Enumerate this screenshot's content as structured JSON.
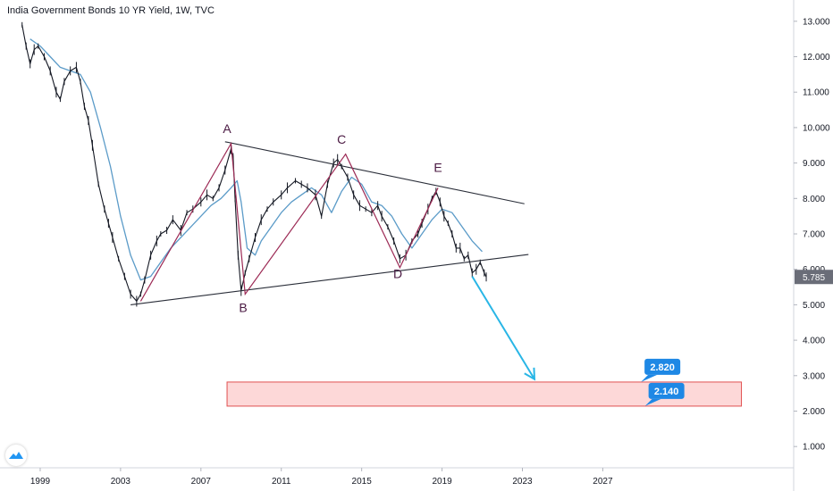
{
  "title": "India Government Bonds 10 YR Yield, 1W, TVC",
  "colors": {
    "price": "#131722",
    "ma": "#5b9bc8",
    "trendline": "#2a2e39",
    "wave": "#9c2a55",
    "arrow": "#29b6e6",
    "zone_fill": "#fdd8d8",
    "zone_border": "#e05050",
    "callout": "#1e88e5",
    "last_price_bg": "#6a6d78"
  },
  "chart_data": {
    "type": "line",
    "xlim": [
      1997.0,
      2036.5
    ],
    "ylim": [
      0.4,
      13.6
    ],
    "x_ticks": [
      "1999",
      "2003",
      "2007",
      "2011",
      "2015",
      "2019",
      "2023",
      "2027"
    ],
    "y_ticks": [
      "1.000",
      "2.000",
      "3.000",
      "4.000",
      "5.000",
      "6.000",
      "7.000",
      "8.000",
      "9.000",
      "10.000",
      "11.000",
      "12.000",
      "13.000"
    ],
    "last_value": "5.785",
    "series": [
      {
        "role": "price",
        "x": [
          1998.1,
          1998.3,
          1998.5,
          1998.7,
          1998.9,
          1999.2,
          1999.5,
          1999.8,
          2000.0,
          2000.2,
          2000.5,
          2000.8,
          2001.0,
          2001.2,
          2001.4,
          2001.6,
          2001.9,
          2002.2,
          2002.4,
          2002.6,
          2002.9,
          2003.2,
          2003.5,
          2003.8,
          2004.0,
          2004.2,
          2004.5,
          2004.8,
          2005.0,
          2005.3,
          2005.6,
          2006.0,
          2006.3,
          2006.6,
          2007.0,
          2007.3,
          2007.6,
          2007.9,
          2008.2,
          2008.5,
          2008.6,
          2008.7,
          2008.85,
          2009.0,
          2009.2,
          2009.4,
          2009.7,
          2010.0,
          2010.3,
          2010.6,
          2011.0,
          2011.3,
          2011.7,
          2012.0,
          2012.3,
          2012.7,
          2013.0,
          2013.3,
          2013.6,
          2013.8,
          2014.0,
          2014.3,
          2014.6,
          2014.9,
          2015.2,
          2015.5,
          2015.8,
          2016.0,
          2016.3,
          2016.6,
          2016.9,
          2017.2,
          2017.5,
          2017.8,
          2018.0,
          2018.3,
          2018.5,
          2018.7,
          2018.9,
          2019.1,
          2019.3,
          2019.5,
          2019.7,
          2019.9,
          2020.1,
          2020.3,
          2020.5,
          2020.7,
          2020.9,
          2021.1,
          2021.2
        ],
        "y": [
          12.9,
          12.3,
          11.8,
          12.2,
          12.3,
          12.0,
          11.6,
          11.0,
          10.8,
          11.3,
          11.6,
          11.7,
          11.3,
          10.6,
          10.2,
          9.5,
          8.4,
          7.7,
          7.3,
          6.9,
          6.3,
          5.8,
          5.3,
          5.1,
          5.3,
          5.7,
          6.4,
          6.8,
          7.0,
          7.1,
          7.4,
          7.1,
          7.6,
          7.7,
          7.9,
          8.1,
          8.0,
          8.3,
          8.8,
          9.4,
          9.2,
          8.0,
          6.4,
          5.4,
          5.9,
          6.3,
          6.9,
          7.4,
          7.7,
          7.9,
          8.1,
          8.3,
          8.5,
          8.4,
          8.3,
          8.1,
          7.5,
          8.4,
          9.0,
          9.1,
          8.9,
          8.6,
          8.1,
          7.8,
          7.7,
          7.6,
          7.8,
          7.5,
          7.2,
          6.8,
          6.3,
          6.4,
          6.8,
          7.0,
          7.3,
          7.7,
          8.0,
          8.2,
          7.9,
          7.5,
          7.3,
          7.0,
          6.6,
          6.6,
          6.3,
          6.4,
          5.9,
          6.0,
          6.2,
          5.9,
          5.785
        ]
      },
      {
        "role": "moving-average",
        "x": [
          1998.5,
          1999.0,
          1999.5,
          2000.0,
          2000.5,
          2001.0,
          2001.5,
          2002.0,
          2002.5,
          2003.0,
          2003.5,
          2004.0,
          2004.5,
          2005.0,
          2005.5,
          2006.0,
          2006.5,
          2007.0,
          2007.5,
          2008.0,
          2008.5,
          2008.8,
          2009.0,
          2009.3,
          2009.7,
          2010.0,
          2010.5,
          2011.0,
          2011.5,
          2012.0,
          2012.5,
          2013.0,
          2013.5,
          2014.0,
          2014.5,
          2015.0,
          2015.5,
          2016.0,
          2016.5,
          2017.0,
          2017.5,
          2018.0,
          2018.5,
          2019.0,
          2019.5,
          2020.0,
          2020.5,
          2021.0
        ],
        "y": [
          12.5,
          12.3,
          12.0,
          11.7,
          11.6,
          11.5,
          11.0,
          10.0,
          8.9,
          7.5,
          6.4,
          5.7,
          5.8,
          6.2,
          6.6,
          6.9,
          7.2,
          7.5,
          7.8,
          8.0,
          8.3,
          8.5,
          7.9,
          6.6,
          6.4,
          6.8,
          7.2,
          7.6,
          7.9,
          8.1,
          8.3,
          8.1,
          7.6,
          8.2,
          8.6,
          8.4,
          7.9,
          7.8,
          7.5,
          7.0,
          6.6,
          7.0,
          7.4,
          7.7,
          7.6,
          7.2,
          6.8,
          6.5
        ]
      }
    ],
    "trendlines": [
      {
        "name": "upper",
        "x": [
          2008.2,
          2023.1
        ],
        "y": [
          9.6,
          7.85
        ]
      },
      {
        "name": "lower",
        "x": [
          2003.5,
          2023.3
        ],
        "y": [
          5.0,
          6.42
        ]
      }
    ],
    "wave_path": {
      "x": [
        2004.0,
        2008.5,
        2009.2,
        2014.2,
        2016.9,
        2018.8
      ],
      "y": [
        5.1,
        9.55,
        5.3,
        9.25,
        6.05,
        8.3
      ]
    },
    "annotations": [
      {
        "label": "A",
        "x": 2008.3,
        "y": 9.85
      },
      {
        "label": "B",
        "x": 2009.1,
        "y": 4.8
      },
      {
        "label": "C",
        "x": 2014.0,
        "y": 9.55
      },
      {
        "label": "D",
        "x": 2016.8,
        "y": 5.75
      },
      {
        "label": "E",
        "x": 2018.8,
        "y": 8.75
      }
    ],
    "target_arrow": {
      "x": [
        2020.5,
        2023.6
      ],
      "y": [
        5.8,
        2.9
      ]
    },
    "target_zone": {
      "x": [
        2008.3,
        2033.9
      ],
      "y": [
        2.14,
        2.82
      ]
    },
    "price_callouts": [
      {
        "label": "2.820",
        "x": 2028.9,
        "y": 2.82
      },
      {
        "label": "2.140",
        "x": 2029.1,
        "y": 2.14
      }
    ]
  }
}
